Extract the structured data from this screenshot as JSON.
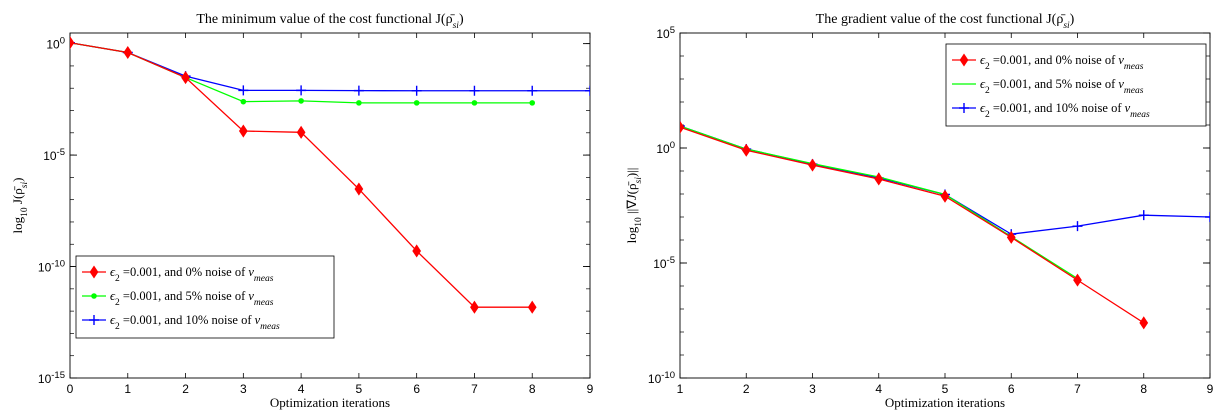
{
  "chart_data": [
    {
      "type": "line",
      "title": "The minimum value of the cost functional J(ρ̄si)",
      "xlabel": "Optimization iterations",
      "ylabel": "log10 J(ρ̄si)",
      "y_scale": "log",
      "xlim": [
        0,
        9
      ],
      "ylim": [
        1e-15,
        3
      ],
      "x_ticks": [
        "0",
        "1",
        "2",
        "3",
        "4",
        "5",
        "6",
        "7",
        "8",
        "9"
      ],
      "y_ticks": [
        {
          "value": 1,
          "base": "10",
          "exp": "0"
        },
        {
          "value": 1e-05,
          "base": "10",
          "exp": "-5"
        },
        {
          "value": 1e-10,
          "base": "10",
          "exp": "-10"
        },
        {
          "value": 1e-15,
          "base": "10",
          "exp": "-15"
        }
      ],
      "legend_position": "bottom-left",
      "series": [
        {
          "name": "ϵ2 =0.001, and 0% noise of vmeas",
          "color": "#ff0000",
          "marker": "diamond",
          "x": [
            0,
            1,
            2,
            3,
            4,
            5,
            6,
            7,
            8
          ],
          "y": [
            1.1,
            0.4,
            0.03,
            0.00012,
            0.000105,
            3e-07,
            5e-10,
            1.5e-12,
            1.5e-12
          ]
        },
        {
          "name": "ϵ2 =0.001, and 5% noise of vmeas",
          "color": "#00ff00",
          "marker": "dot",
          "x": [
            0,
            1,
            2,
            3,
            4,
            5,
            6,
            7,
            8
          ],
          "y": [
            1.1,
            0.4,
            0.03,
            0.0025,
            0.0027,
            0.0022,
            0.0022,
            0.0022,
            0.0022
          ]
        },
        {
          "name": "ϵ2 =0.001, and 10% noise of vmeas",
          "color": "#0000ff",
          "marker": "plus",
          "x": [
            0,
            1,
            2,
            3,
            4,
            5,
            6,
            7,
            8,
            9
          ],
          "y": [
            1.1,
            0.4,
            0.035,
            0.008,
            0.008,
            0.0078,
            0.0077,
            0.0077,
            0.0077,
            0.0077
          ]
        }
      ]
    },
    {
      "type": "line",
      "title": "The gradient value of the cost functional J(ρ̄si)",
      "xlabel": "Optimization iterations",
      "ylabel": "log10 ||∇J(ρ̄si)||",
      "y_scale": "log",
      "xlim": [
        1,
        9
      ],
      "ylim": [
        1e-10,
        100000.0
      ],
      "x_ticks": [
        "1",
        "2",
        "3",
        "4",
        "5",
        "6",
        "7",
        "8",
        "9"
      ],
      "y_ticks": [
        {
          "value": 100000,
          "base": "10",
          "exp": "5"
        },
        {
          "value": 1,
          "base": "10",
          "exp": "0"
        },
        {
          "value": 1e-05,
          "base": "10",
          "exp": "-5"
        },
        {
          "value": 1e-10,
          "base": "10",
          "exp": "-10"
        }
      ],
      "legend_position": "top-right",
      "series": [
        {
          "name": "ϵ2 =0.001, and 0% noise of vmeas",
          "color": "#ff0000",
          "marker": "diamond",
          "x": [
            1,
            2,
            3,
            4,
            5,
            6,
            7,
            8
          ],
          "y": [
            8,
            0.8,
            0.18,
            0.045,
            0.008,
            0.00013,
            1.8e-06,
            2.5e-08
          ]
        },
        {
          "name": "ϵ2 =0.001, and 5% noise of vmeas",
          "color": "#00ff00",
          "marker": "none",
          "x": [
            1,
            2,
            3,
            4,
            5,
            6,
            7
          ],
          "y": [
            9,
            0.9,
            0.21,
            0.055,
            0.0095,
            0.00014,
            2.1e-06
          ]
        },
        {
          "name": "ϵ2 =0.001, and 10% noise of vmeas",
          "color": "#0000ff",
          "marker": "plus",
          "x": [
            1,
            2,
            3,
            4,
            5,
            6,
            7,
            8,
            9
          ],
          "y": [
            9,
            0.9,
            0.2,
            0.05,
            0.0095,
            0.00018,
            0.0004,
            0.0012,
            0.001
          ]
        }
      ]
    }
  ]
}
